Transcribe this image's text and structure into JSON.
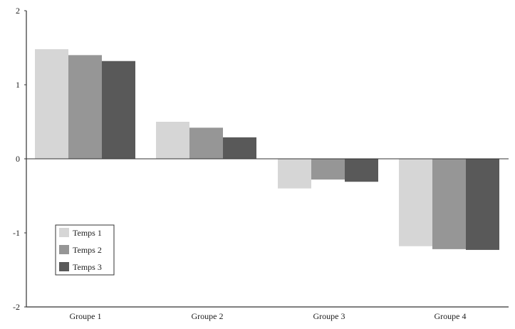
{
  "chart_data": {
    "type": "bar",
    "categories": [
      "Groupe 1",
      "Groupe 2",
      "Groupe 3",
      "Groupe 4"
    ],
    "series": [
      {
        "name": "Temps 1",
        "values": [
          1.48,
          0.5,
          -0.4,
          -1.18
        ],
        "color": "#d6d6d6"
      },
      {
        "name": "Temps 2",
        "values": [
          1.4,
          0.42,
          -0.28,
          -1.22
        ],
        "color": "#969696"
      },
      {
        "name": "Temps 3",
        "values": [
          1.32,
          0.29,
          -0.31,
          -1.23
        ],
        "color": "#595959"
      }
    ],
    "yticks": [
      "2",
      "1",
      "0",
      "-1",
      "-2"
    ],
    "ylim": [
      -2,
      2
    ],
    "title": "",
    "xlabel": "",
    "ylabel": "",
    "grid": false,
    "legend_position": "bottom-left"
  }
}
